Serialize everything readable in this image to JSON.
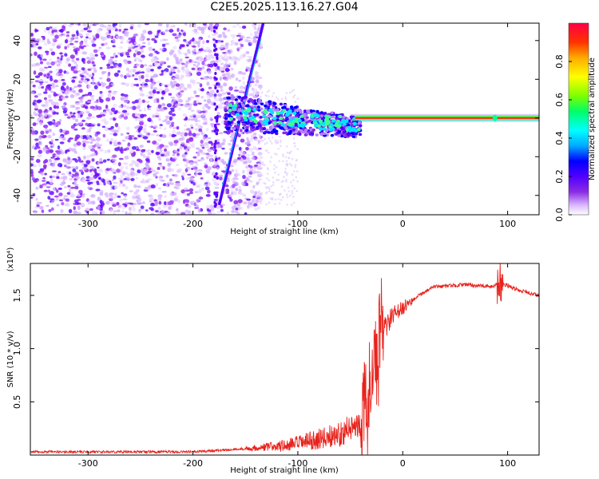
{
  "page_title": "C2E5.2025.113.16.27.G04",
  "chart_data": [
    {
      "type": "heatmap",
      "xlabel": "Height of straight line (km)",
      "ylabel": "Frequency (Hz)",
      "xlim": [
        -355,
        130
      ],
      "ylim": [
        -50,
        49
      ],
      "x_ticks": [
        -300,
        -200,
        -100,
        0,
        100
      ],
      "y_ticks": [
        -40,
        -20,
        0,
        20,
        40
      ],
      "colorbar": {
        "label": "Normalized spectral amplitude",
        "ticks": [
          0.0,
          0.2,
          0.4,
          0.6,
          0.8
        ],
        "range": [
          0,
          1
        ],
        "colors": [
          "#ffffff",
          "#d9b8ff",
          "#8a2be2",
          "#5000ff",
          "#0000ff",
          "#00aaff",
          "#00ffff",
          "#00ff66",
          "#7cff00",
          "#ffff00",
          "#ffaa00",
          "#ff3300",
          "#ff0044"
        ]
      },
      "features": {
        "noise_region_x": [
          -355,
          -135
        ],
        "sweep_line": {
          "x": [
            -175,
            -133
          ],
          "y": [
            -45,
            49
          ]
        },
        "carrier_x_start": -45,
        "carrier_frequency": 0,
        "pulse_x": 88
      }
    },
    {
      "type": "line",
      "xlabel": "Height of straight line (km)",
      "ylabel": "SNR (10 * v/v)",
      "y_multiplier_label": "(x10⁴)",
      "xlim": [
        -355,
        130
      ],
      "ylim": [
        0,
        1.8
      ],
      "x_ticks": [
        -300,
        -200,
        -100,
        0,
        100
      ],
      "y_ticks": [
        0.5,
        1.0,
        1.5
      ],
      "y_tick_labels": [
        "0.5",
        "1.0",
        "1.5"
      ],
      "color": "#e8221c",
      "envelope_points": [
        {
          "x": -355,
          "y": 0.03
        },
        {
          "x": -200,
          "y": 0.03
        },
        {
          "x": -150,
          "y": 0.06
        },
        {
          "x": -110,
          "y": 0.09
        },
        {
          "x": -80,
          "y": 0.15
        },
        {
          "x": -60,
          "y": 0.2
        },
        {
          "x": -40,
          "y": 0.3
        },
        {
          "x": -30,
          "y": 0.55
        },
        {
          "x": -25,
          "y": 0.9
        },
        {
          "x": -20,
          "y": 1.15
        },
        {
          "x": -10,
          "y": 1.3
        },
        {
          "x": 0,
          "y": 1.38
        },
        {
          "x": 15,
          "y": 1.5
        },
        {
          "x": 30,
          "y": 1.58
        },
        {
          "x": 60,
          "y": 1.6
        },
        {
          "x": 85,
          "y": 1.58
        },
        {
          "x": 93,
          "y": 1.62
        },
        {
          "x": 110,
          "y": 1.55
        },
        {
          "x": 130,
          "y": 1.5
        }
      ]
    }
  ]
}
